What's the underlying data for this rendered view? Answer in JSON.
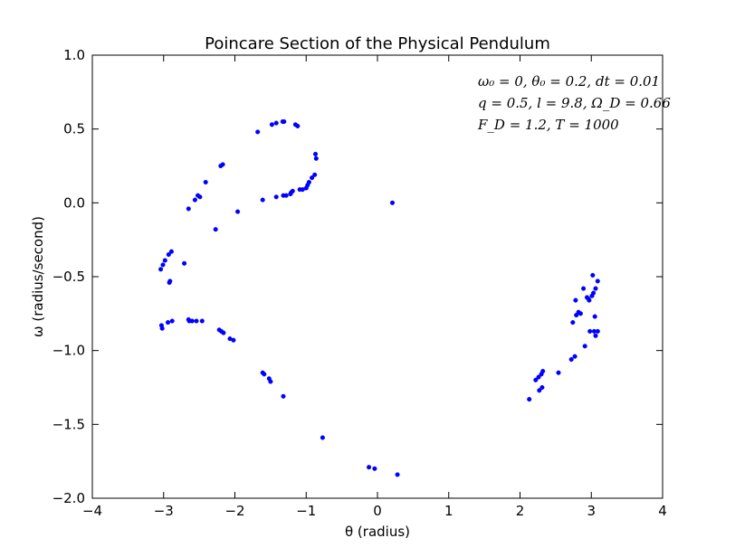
{
  "chart_data": {
    "type": "scatter",
    "title": "Poincare Section of the Physical Pendulum",
    "xlabel": "θ (radius)",
    "ylabel": "ω (radius/second)",
    "xlim": [
      -4,
      4
    ],
    "ylim": [
      -2.0,
      1.0
    ],
    "xticks": [
      "−4",
      "−3",
      "−2",
      "−1",
      "0",
      "1",
      "2",
      "3",
      "4"
    ],
    "xtick_values": [
      -4,
      -3,
      -2,
      -1,
      0,
      1,
      2,
      3,
      4
    ],
    "yticks": [
      "−2.0",
      "−1.5",
      "−1.0",
      "−0.5",
      "0.0",
      "0.5",
      "1.0"
    ],
    "ytick_values": [
      -2.0,
      -1.5,
      -1.0,
      -0.5,
      0.0,
      0.5,
      1.0
    ],
    "grid": false,
    "legend": "none",
    "marker_color": "#0000ff",
    "annotation_lines": [
      "ω₀ = 0, θ₀ = 0.2, dt = 0.01",
      "q = 0.5, l = 9.8, Ω_D = 0.66",
      "F_D = 1.2, T = 1000"
    ],
    "points": [
      [
        0.21,
        0.0
      ],
      [
        -1.33,
        0.55
      ],
      [
        -1.31,
        0.55
      ],
      [
        -1.42,
        0.54
      ],
      [
        -1.48,
        0.53
      ],
      [
        -1.15,
        0.53
      ],
      [
        -1.12,
        0.52
      ],
      [
        -1.68,
        0.48
      ],
      [
        -0.87,
        0.33
      ],
      [
        -0.86,
        0.3
      ],
      [
        -2.17,
        0.26
      ],
      [
        -2.2,
        0.25
      ],
      [
        -0.88,
        0.19
      ],
      [
        -0.92,
        0.17
      ],
      [
        -0.96,
        0.14
      ],
      [
        -2.41,
        0.14
      ],
      [
        -0.98,
        0.12
      ],
      [
        -1.0,
        0.1
      ],
      [
        -1.05,
        0.09
      ],
      [
        -1.09,
        0.09
      ],
      [
        -1.19,
        0.08
      ],
      [
        -1.21,
        0.07
      ],
      [
        -1.22,
        0.06
      ],
      [
        -1.32,
        0.05
      ],
      [
        -1.28,
        0.05
      ],
      [
        -2.52,
        0.05
      ],
      [
        -2.49,
        0.04
      ],
      [
        -1.42,
        0.04
      ],
      [
        -2.56,
        0.02
      ],
      [
        -1.61,
        0.02
      ],
      [
        -2.65,
        -0.04
      ],
      [
        -1.96,
        -0.06
      ],
      [
        -2.27,
        -0.18
      ],
      [
        -2.89,
        -0.33
      ],
      [
        -2.93,
        -0.35
      ],
      [
        -2.98,
        -0.39
      ],
      [
        -3.01,
        -0.42
      ],
      [
        -2.71,
        -0.41
      ],
      [
        -3.04,
        -0.45
      ],
      [
        -2.91,
        -0.53
      ],
      [
        -2.92,
        -0.54
      ],
      [
        -2.65,
        -0.79
      ],
      [
        -2.64,
        -0.8
      ],
      [
        -2.6,
        -0.8
      ],
      [
        -2.54,
        -0.8
      ],
      [
        -2.46,
        -0.8
      ],
      [
        -2.88,
        -0.8
      ],
      [
        -2.94,
        -0.81
      ],
      [
        -3.03,
        -0.83
      ],
      [
        -3.02,
        -0.85
      ],
      [
        -2.22,
        -0.86
      ],
      [
        -2.19,
        -0.87
      ],
      [
        -2.16,
        -0.88
      ],
      [
        -2.07,
        -0.92
      ],
      [
        -2.02,
        -0.93
      ],
      [
        -1.61,
        -1.15
      ],
      [
        -1.59,
        -1.16
      ],
      [
        -1.52,
        -1.19
      ],
      [
        -1.5,
        -1.21
      ],
      [
        -1.32,
        -1.31
      ],
      [
        -0.77,
        -1.59
      ],
      [
        -0.12,
        -1.79
      ],
      [
        -0.04,
        -1.8
      ],
      [
        0.28,
        -1.84
      ],
      [
        3.02,
        -0.49
      ],
      [
        3.09,
        -0.53
      ],
      [
        3.06,
        -0.58
      ],
      [
        2.89,
        -0.58
      ],
      [
        3.03,
        -0.61
      ],
      [
        3.01,
        -0.63
      ],
      [
        2.94,
        -0.64
      ],
      [
        2.96,
        -0.65
      ],
      [
        2.97,
        -0.66
      ],
      [
        2.78,
        -0.66
      ],
      [
        2.82,
        -0.74
      ],
      [
        2.85,
        -0.75
      ],
      [
        2.79,
        -0.76
      ],
      [
        3.05,
        -0.77
      ],
      [
        2.74,
        -0.81
      ],
      [
        2.98,
        -0.87
      ],
      [
        3.04,
        -0.87
      ],
      [
        3.09,
        -0.87
      ],
      [
        3.06,
        -0.9
      ],
      [
        2.91,
        -0.97
      ],
      [
        2.77,
        -1.04
      ],
      [
        2.72,
        -1.06
      ],
      [
        2.54,
        -1.15
      ],
      [
        2.32,
        -1.14
      ],
      [
        2.3,
        -1.16
      ],
      [
        2.26,
        -1.18
      ],
      [
        2.22,
        -1.2
      ],
      [
        2.31,
        -1.25
      ],
      [
        2.27,
        -1.27
      ],
      [
        2.13,
        -1.33
      ]
    ]
  }
}
